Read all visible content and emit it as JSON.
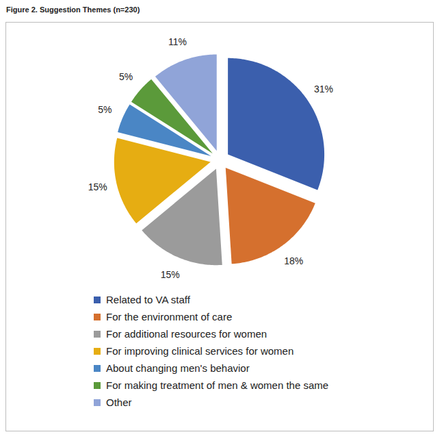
{
  "chart_data": {
    "type": "pie",
    "title": "Figure 2. Suggestion Themes (n=230)",
    "categories": [
      "Related to VA staff",
      "For the environment of care",
      "For additional resources for women",
      "For improving clinical services for women",
      "About changing men's behavior",
      "For making treatment of men & women the same",
      "Other"
    ],
    "values": [
      31,
      18,
      15,
      15,
      5,
      5,
      11
    ],
    "value_labels": [
      "31%",
      "18%",
      "15%",
      "15%",
      "5%",
      "5%",
      "11%"
    ],
    "colors": [
      "#3b5fad",
      "#d5702e",
      "#9b9b9b",
      "#e6ad12",
      "#4a86c5",
      "#5b9a3a",
      "#90a4d8"
    ],
    "data_labels": true,
    "legend": "bottom"
  }
}
